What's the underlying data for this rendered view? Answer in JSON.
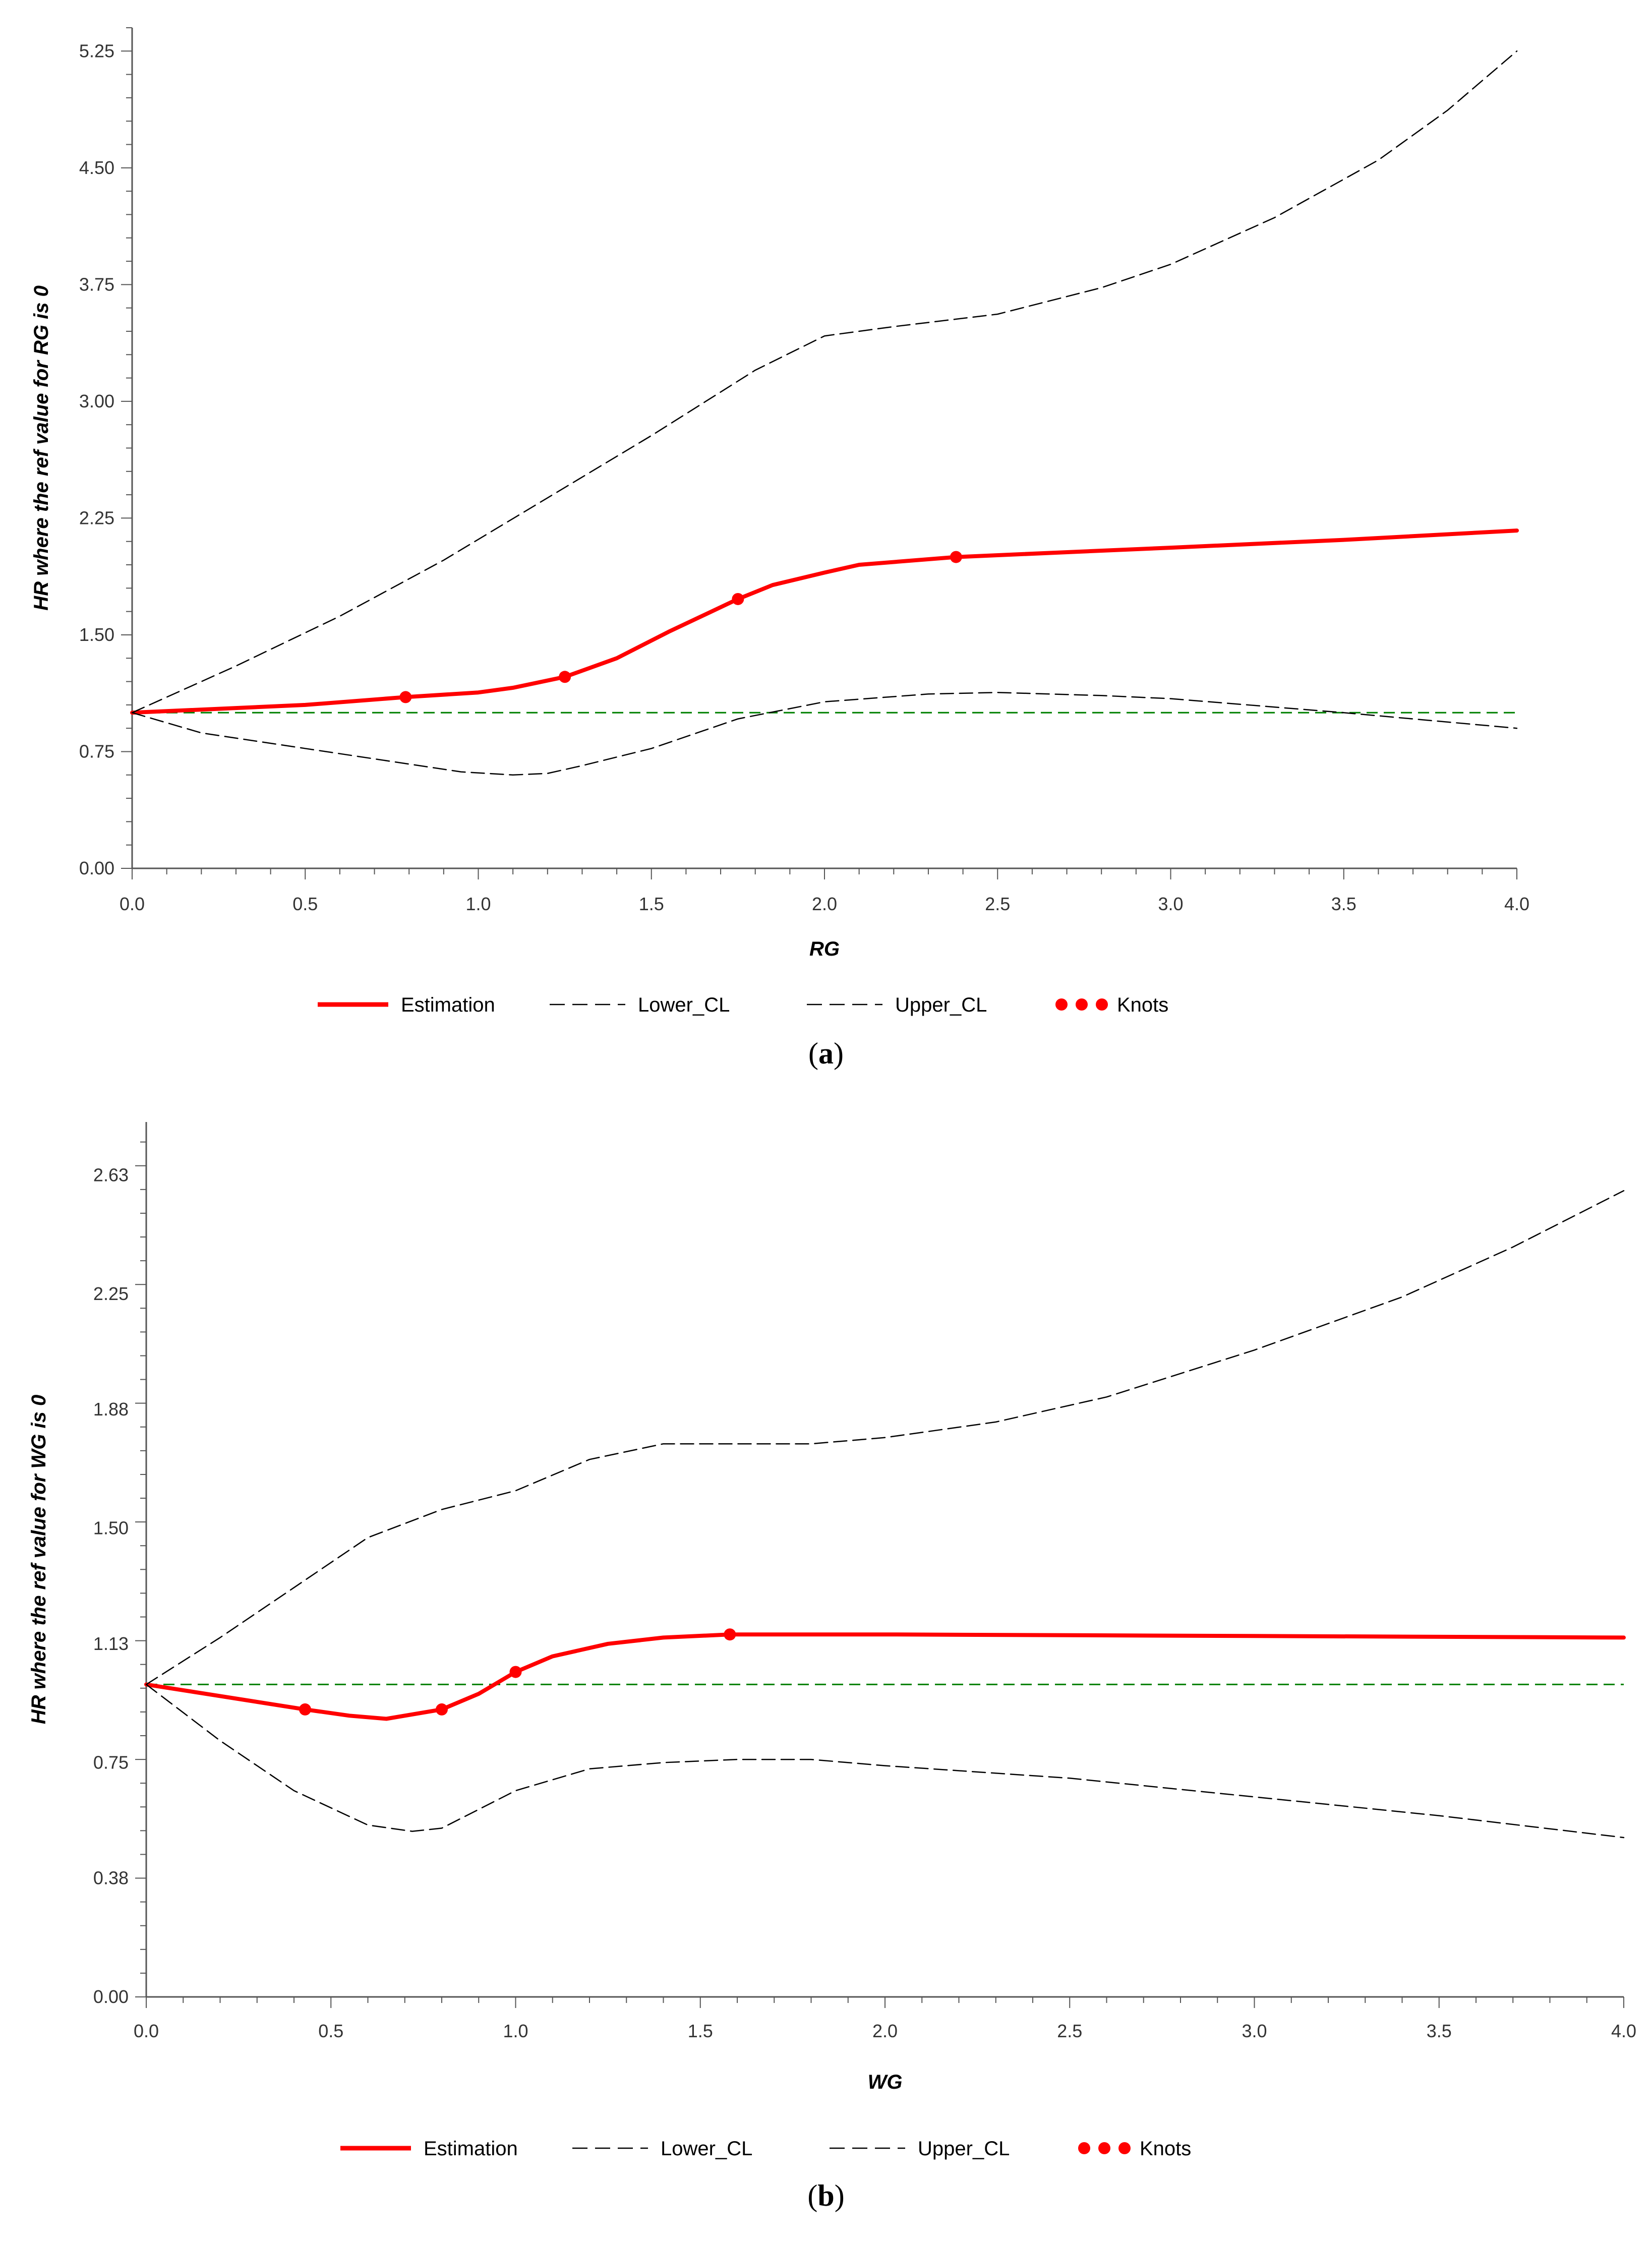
{
  "chart_data": [
    {
      "type": "line",
      "panel": "a",
      "caption": "a",
      "xlabel": "RG",
      "ylabel": "HR where the ref value for RG is 0",
      "xlim": [
        0,
        4
      ],
      "ylim": [
        0,
        5.4
      ],
      "xticks": [
        "0.0",
        "0.5",
        "1.0",
        "1.5",
        "2.0",
        "2.5",
        "3.0",
        "3.5",
        "4.0"
      ],
      "yticks": [
        "0.00",
        "0.75",
        "1.50",
        "2.25",
        "3.00",
        "3.75",
        "4.50",
        "5.25"
      ],
      "reference_line": 1.0,
      "series": [
        {
          "name": "Estimation",
          "style": "solid-red",
          "x": [
            0,
            0.5,
            0.79,
            1.0,
            1.1,
            1.25,
            1.4,
            1.55,
            1.75,
            1.85,
            2.0,
            2.1,
            2.38,
            3.0,
            3.5,
            4.0
          ],
          "y": [
            1.0,
            1.05,
            1.1,
            1.13,
            1.16,
            1.23,
            1.35,
            1.52,
            1.73,
            1.82,
            1.9,
            1.95,
            2.0,
            2.06,
            2.11,
            2.17
          ]
        },
        {
          "name": "Lower_CL",
          "style": "dash-black",
          "x": [
            0,
            0.2,
            0.5,
            0.8,
            0.95,
            1.1,
            1.2,
            1.3,
            1.5,
            1.75,
            2.0,
            2.3,
            2.5,
            2.8,
            3.0,
            3.5,
            4.0
          ],
          "y": [
            1.0,
            0.87,
            0.77,
            0.67,
            0.62,
            0.6,
            0.61,
            0.66,
            0.77,
            0.96,
            1.07,
            1.12,
            1.13,
            1.11,
            1.09,
            1.0,
            0.9
          ]
        },
        {
          "name": "Upper_CL",
          "style": "dash-black",
          "x": [
            0,
            0.3,
            0.6,
            0.9,
            1.2,
            1.5,
            1.8,
            2.0,
            2.2,
            2.5,
            2.8,
            3.0,
            3.3,
            3.6,
            3.8,
            4.0
          ],
          "y": [
            1.0,
            1.3,
            1.62,
            1.98,
            2.38,
            2.78,
            3.2,
            3.42,
            3.48,
            3.56,
            3.73,
            3.88,
            4.18,
            4.55,
            4.87,
            5.25
          ]
        }
      ],
      "knots": {
        "name": "Knots",
        "x": [
          0.79,
          1.25,
          1.75,
          2.38
        ],
        "y": [
          1.1,
          1.23,
          1.73,
          2.0
        ]
      }
    },
    {
      "type": "line",
      "panel": "b",
      "caption": "b",
      "xlabel": "WG",
      "ylabel": "HR where the ref value for WG is 0",
      "xlim": [
        0,
        4
      ],
      "ylim": [
        0,
        2.8
      ],
      "xticks": [
        "0.0",
        "0.5",
        "1.0",
        "1.5",
        "2.0",
        "2.5",
        "3.0",
        "3.5",
        "4.0"
      ],
      "yticks": [
        "0.00",
        "0.38",
        "0.75",
        "1.13",
        "1.50",
        "1.88",
        "2.25",
        "2.63"
      ],
      "reference_line": 1.0,
      "series": [
        {
          "name": "Estimation",
          "style": "solid-red",
          "x": [
            0,
            0.43,
            0.55,
            0.65,
            0.8,
            0.9,
            1.0,
            1.1,
            1.25,
            1.4,
            1.58,
            2.0,
            3.0,
            4.0
          ],
          "y": [
            1.0,
            0.92,
            0.9,
            0.89,
            0.92,
            0.97,
            1.04,
            1.09,
            1.13,
            1.15,
            1.16,
            1.16,
            1.155,
            1.15
          ]
        },
        {
          "name": "Lower_CL",
          "style": "dash-black",
          "x": [
            0,
            0.2,
            0.4,
            0.6,
            0.72,
            0.8,
            0.9,
            1.0,
            1.2,
            1.4,
            1.6,
            1.8,
            2.0,
            2.5,
            3.0,
            3.5,
            4.0
          ],
          "y": [
            1.0,
            0.82,
            0.66,
            0.55,
            0.53,
            0.54,
            0.6,
            0.66,
            0.73,
            0.75,
            0.76,
            0.76,
            0.74,
            0.7,
            0.64,
            0.58,
            0.51
          ]
        },
        {
          "name": "Upper_CL",
          "style": "dash-black",
          "x": [
            0,
            0.2,
            0.4,
            0.6,
            0.8,
            1.0,
            1.2,
            1.4,
            1.6,
            1.8,
            2.0,
            2.3,
            2.6,
            3.0,
            3.4,
            3.7,
            4.0
          ],
          "y": [
            1.0,
            1.15,
            1.31,
            1.47,
            1.56,
            1.62,
            1.72,
            1.77,
            1.77,
            1.77,
            1.79,
            1.84,
            1.92,
            2.07,
            2.24,
            2.4,
            2.58
          ]
        }
      ],
      "knots": {
        "name": "Knots",
        "x": [
          0.43,
          0.8,
          1.0,
          1.58
        ],
        "y": [
          0.92,
          0.92,
          1.04,
          1.16
        ]
      }
    }
  ],
  "legend": {
    "estimation": "Estimation",
    "lower": "Lower_CL",
    "upper": "Upper_CL",
    "knots": "Knots"
  },
  "colors": {
    "estimation": "#ff0000",
    "ci": "#000000",
    "reference": "#008000",
    "axis": "#555555"
  }
}
